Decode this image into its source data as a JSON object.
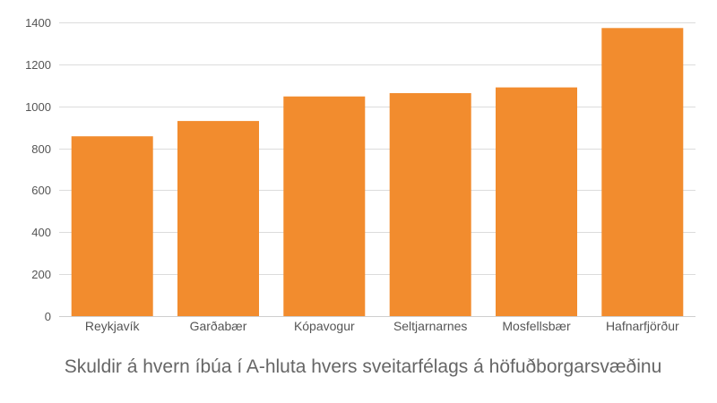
{
  "chart_data": {
    "type": "bar",
    "title": "Skuldir á hvern íbúa í A-hluta hvers sveitarfélags á höfuðborgarsvæðinu",
    "xlabel": "",
    "ylabel": "",
    "categories": [
      "Reykjavík",
      "Garðabær",
      "Kópavogur",
      "Seltjarnarnes",
      "Mosfellsbær",
      "Hafnarfjörður"
    ],
    "values": [
      857,
      930,
      1047,
      1063,
      1090,
      1373
    ],
    "ylim": [
      0,
      1400
    ],
    "yticks": [
      0,
      200,
      400,
      600,
      800,
      1000,
      1200,
      1400
    ],
    "grid": true,
    "legend": "none",
    "bar_color": "#f28c2e"
  }
}
